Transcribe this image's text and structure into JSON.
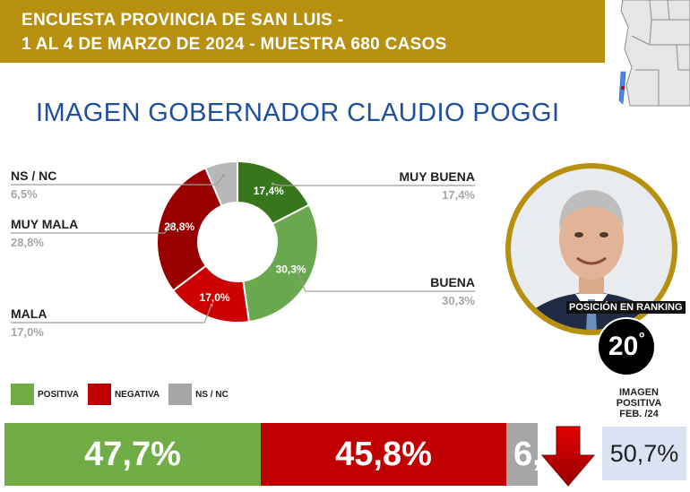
{
  "header": {
    "line1": "ENCUESTA PROVINCIA DE SAN LUIS -",
    "line2": "1 AL 4 DE MARZO DE 2024 - MUESTRA 680 CASOS"
  },
  "title": "IMAGEN GOBERNADOR CLAUDIO POGGI",
  "chart_data": [
    {
      "type": "pie",
      "variant": "donut",
      "categories": [
        "MUY BUENA",
        "BUENA",
        "MALA",
        "MUY MALA",
        "NS / NC"
      ],
      "values": [
        17.4,
        30.3,
        17.0,
        28.8,
        6.5
      ],
      "labels": [
        "17,4%",
        "30,3%",
        "17,0%",
        "28,8%",
        "6,5%"
      ],
      "colors": [
        "#38761d",
        "#6aa84f",
        "#cc0000",
        "#990000",
        "#b7b7b7"
      ]
    },
    {
      "type": "bar",
      "variant": "stacked-horizontal",
      "categories": [
        "POSITIVA",
        "NEGATIVA",
        "NS / NC"
      ],
      "values": [
        47.7,
        45.8,
        6.5
      ],
      "labels": [
        "47,7%",
        "45,8%",
        "6,5%"
      ],
      "colors": [
        "#70ad47",
        "#c00000",
        "#a6a6a6"
      ]
    }
  ],
  "ranking": {
    "caption": "POSICIÓN EN RANKING",
    "position": "20",
    "suffix": "º"
  },
  "legend": [
    {
      "label": "POSITIVA",
      "color": "#70ad47"
    },
    {
      "label": "NEGATIVA",
      "color": "#c00000"
    },
    {
      "label": "NS / NC",
      "color": "#a6a6a6"
    }
  ],
  "previous": {
    "label_line1": "IMAGEN",
    "label_line2": "POSITIVA",
    "label_line3": "FEB. /24",
    "value": "50,7%",
    "trend_icon": "down-arrow-icon"
  }
}
